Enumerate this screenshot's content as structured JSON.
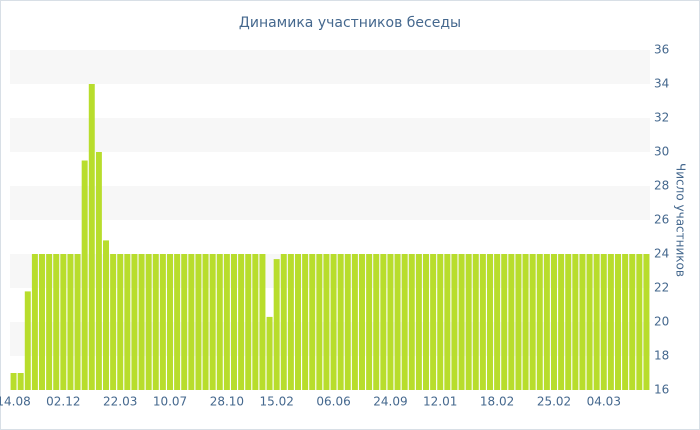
{
  "chart_data": {
    "type": "bar",
    "title": "Динамика участников беседы",
    "y_label": "Число участников",
    "categories": [
      "14.08",
      null,
      null,
      null,
      null,
      null,
      null,
      "02.12",
      null,
      null,
      null,
      null,
      null,
      null,
      null,
      "22.03",
      null,
      null,
      null,
      null,
      null,
      null,
      "10.07",
      null,
      null,
      null,
      null,
      null,
      null,
      null,
      "28.10",
      null,
      null,
      null,
      null,
      null,
      null,
      "15.02",
      null,
      null,
      null,
      null,
      null,
      null,
      null,
      "06.06",
      null,
      null,
      null,
      null,
      null,
      null,
      null,
      "24.09",
      null,
      null,
      null,
      null,
      null,
      null,
      "12.01",
      null,
      null,
      null,
      null,
      null,
      null,
      null,
      "18.02",
      null,
      null,
      null,
      null,
      null,
      null,
      null,
      "25.02",
      null,
      null,
      null,
      null,
      null,
      null,
      "04.03",
      null,
      null,
      null,
      null,
      null,
      null
    ],
    "values": [
      17,
      17,
      21.8,
      24,
      24,
      24,
      24,
      24,
      24,
      24,
      29.5,
      34,
      30,
      24.8,
      24,
      24,
      24,
      24,
      24,
      24,
      24,
      24,
      24,
      24,
      24,
      24,
      24,
      24,
      24,
      24,
      24,
      24,
      24,
      24,
      24,
      24,
      20.3,
      23.7,
      24,
      24,
      24,
      24,
      24,
      24,
      24,
      24,
      24,
      24,
      24,
      24,
      24,
      24,
      24,
      24,
      24,
      24,
      24,
      24,
      24,
      24,
      24,
      24,
      24,
      24,
      24,
      24,
      24,
      24,
      24,
      24,
      24,
      24,
      24,
      24,
      24,
      24,
      24,
      24,
      24,
      24,
      24,
      24,
      24,
      24,
      24,
      24,
      24,
      24,
      24,
      24
    ],
    "color": "#b8dd2c",
    "ylim": [
      16,
      36
    ],
    "yticks": [
      16,
      18,
      20,
      22,
      24,
      26,
      28,
      30,
      32,
      34,
      36
    ],
    "grid": true,
    "y_axis_side": "right"
  }
}
